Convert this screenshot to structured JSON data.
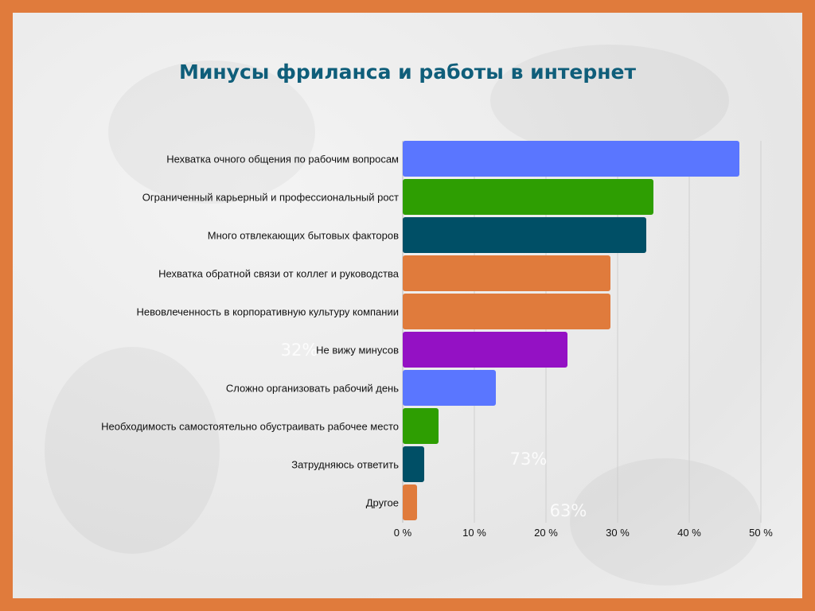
{
  "page": {
    "background": "#E07B3C"
  },
  "chart_data": {
    "type": "bar",
    "orientation": "horizontal",
    "title": "Минусы фриланса и работы в интернет",
    "categories": [
      "Нехватка очного общения по рабочим вопросам",
      "Ограниченный карьерный и профессиональный рост",
      "Много отвлекающих бытовых факторов",
      "Нехватка обратной связи от коллег и руководства",
      "Невовлеченность в корпоративную культуру компании",
      "Не вижу минусов",
      "Сложно организовать рабочий день",
      "Необходимость самостоятельно обустраивать рабочее место",
      "Затрудняюсь ответить",
      "Другое"
    ],
    "values": [
      47,
      35,
      34,
      29,
      29,
      23,
      13,
      5,
      3,
      2
    ],
    "colors": [
      "#5A76FF",
      "#2E9E02",
      "#004F66",
      "#E07B3C",
      "#E07B3C",
      "#9411C4",
      "#5A76FF",
      "#2E9E02",
      "#004F66",
      "#E07B3C"
    ],
    "xlim": [
      0,
      50
    ],
    "xticks": [
      0,
      10,
      20,
      30,
      40,
      50
    ],
    "xtick_labels": [
      "0 %",
      "10 %",
      "20 %",
      "30 %",
      "40 %",
      "50 %"
    ],
    "grid": "vertical",
    "faint_labels": [
      "32%",
      "73%",
      "63%"
    ]
  }
}
